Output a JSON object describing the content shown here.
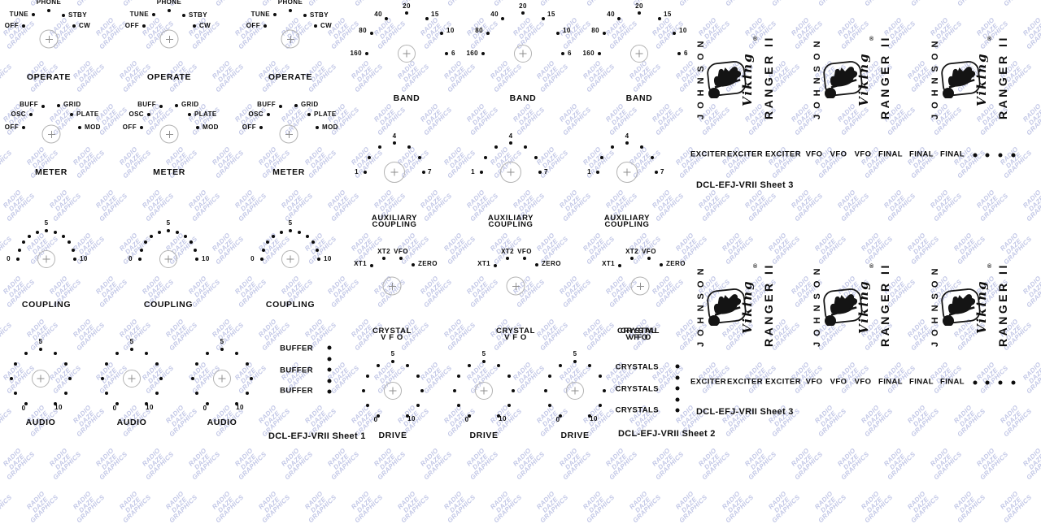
{
  "watermark": {
    "lines": [
      "RADIO",
      "DAZE",
      "GRAPHICS"
    ],
    "color": "#b7bde2"
  },
  "sheets": {
    "sheet1_label": "DCL-EFJ-VRII Sheet 1",
    "sheet2_label": "DCL-EFJ-VRII Sheet 2",
    "sheet3_label": "DCL-EFJ-VRII Sheet 3"
  },
  "dials": {
    "operate": {
      "title": "OPERATE",
      "positions": [
        "OFF",
        "TUNE",
        "PHONE",
        "STBY",
        "CW"
      ]
    },
    "meter": {
      "title": "METER",
      "positions": [
        "OFF",
        "OSC",
        "BUFF",
        "GRID",
        "PLATE",
        "MOD"
      ]
    },
    "coupling": {
      "title": "COUPLING",
      "labels": [
        "0",
        "5",
        "10"
      ]
    },
    "audio": {
      "title": "AUDIO",
      "labels": [
        "0",
        "5",
        "10"
      ]
    },
    "band": {
      "title": "BAND",
      "positions": [
        "160",
        "80",
        "40",
        "20",
        "15",
        "10",
        "6"
      ]
    },
    "aux_coupling": {
      "title_lines": [
        "AUXILIARY",
        "COUPLING"
      ],
      "labels": [
        "1",
        "4",
        "7"
      ]
    },
    "crystal_vfo": {
      "title_lines": [
        "CRYSTAL",
        "V F O"
      ],
      "positions": [
        "XT1",
        "XT2",
        "VFO",
        "ZERO"
      ]
    },
    "drive": {
      "title": "DRIVE",
      "labels": [
        "0",
        "5",
        "10"
      ]
    }
  },
  "columns": {
    "buffer_labels": [
      "BUFFER",
      "BUFFER",
      "BUFFER"
    ],
    "crystals_labels": [
      "CRYSTALS",
      "CRYSTALS",
      "CRYSTALS"
    ]
  },
  "logo": {
    "brand": "JOHNSON",
    "script": "Viking",
    "registered": "®",
    "model": "RANGER II"
  },
  "panel_labels": [
    "EXCITER",
    "EXCITER",
    "EXCITER",
    "VFO",
    "VFO",
    "VFO",
    "FINAL",
    "FINAL",
    "FINAL"
  ],
  "colors": {
    "ink": "#0d0d0d",
    "registration_mark": "#8f8f8f",
    "watermark": "#b7bde2"
  }
}
